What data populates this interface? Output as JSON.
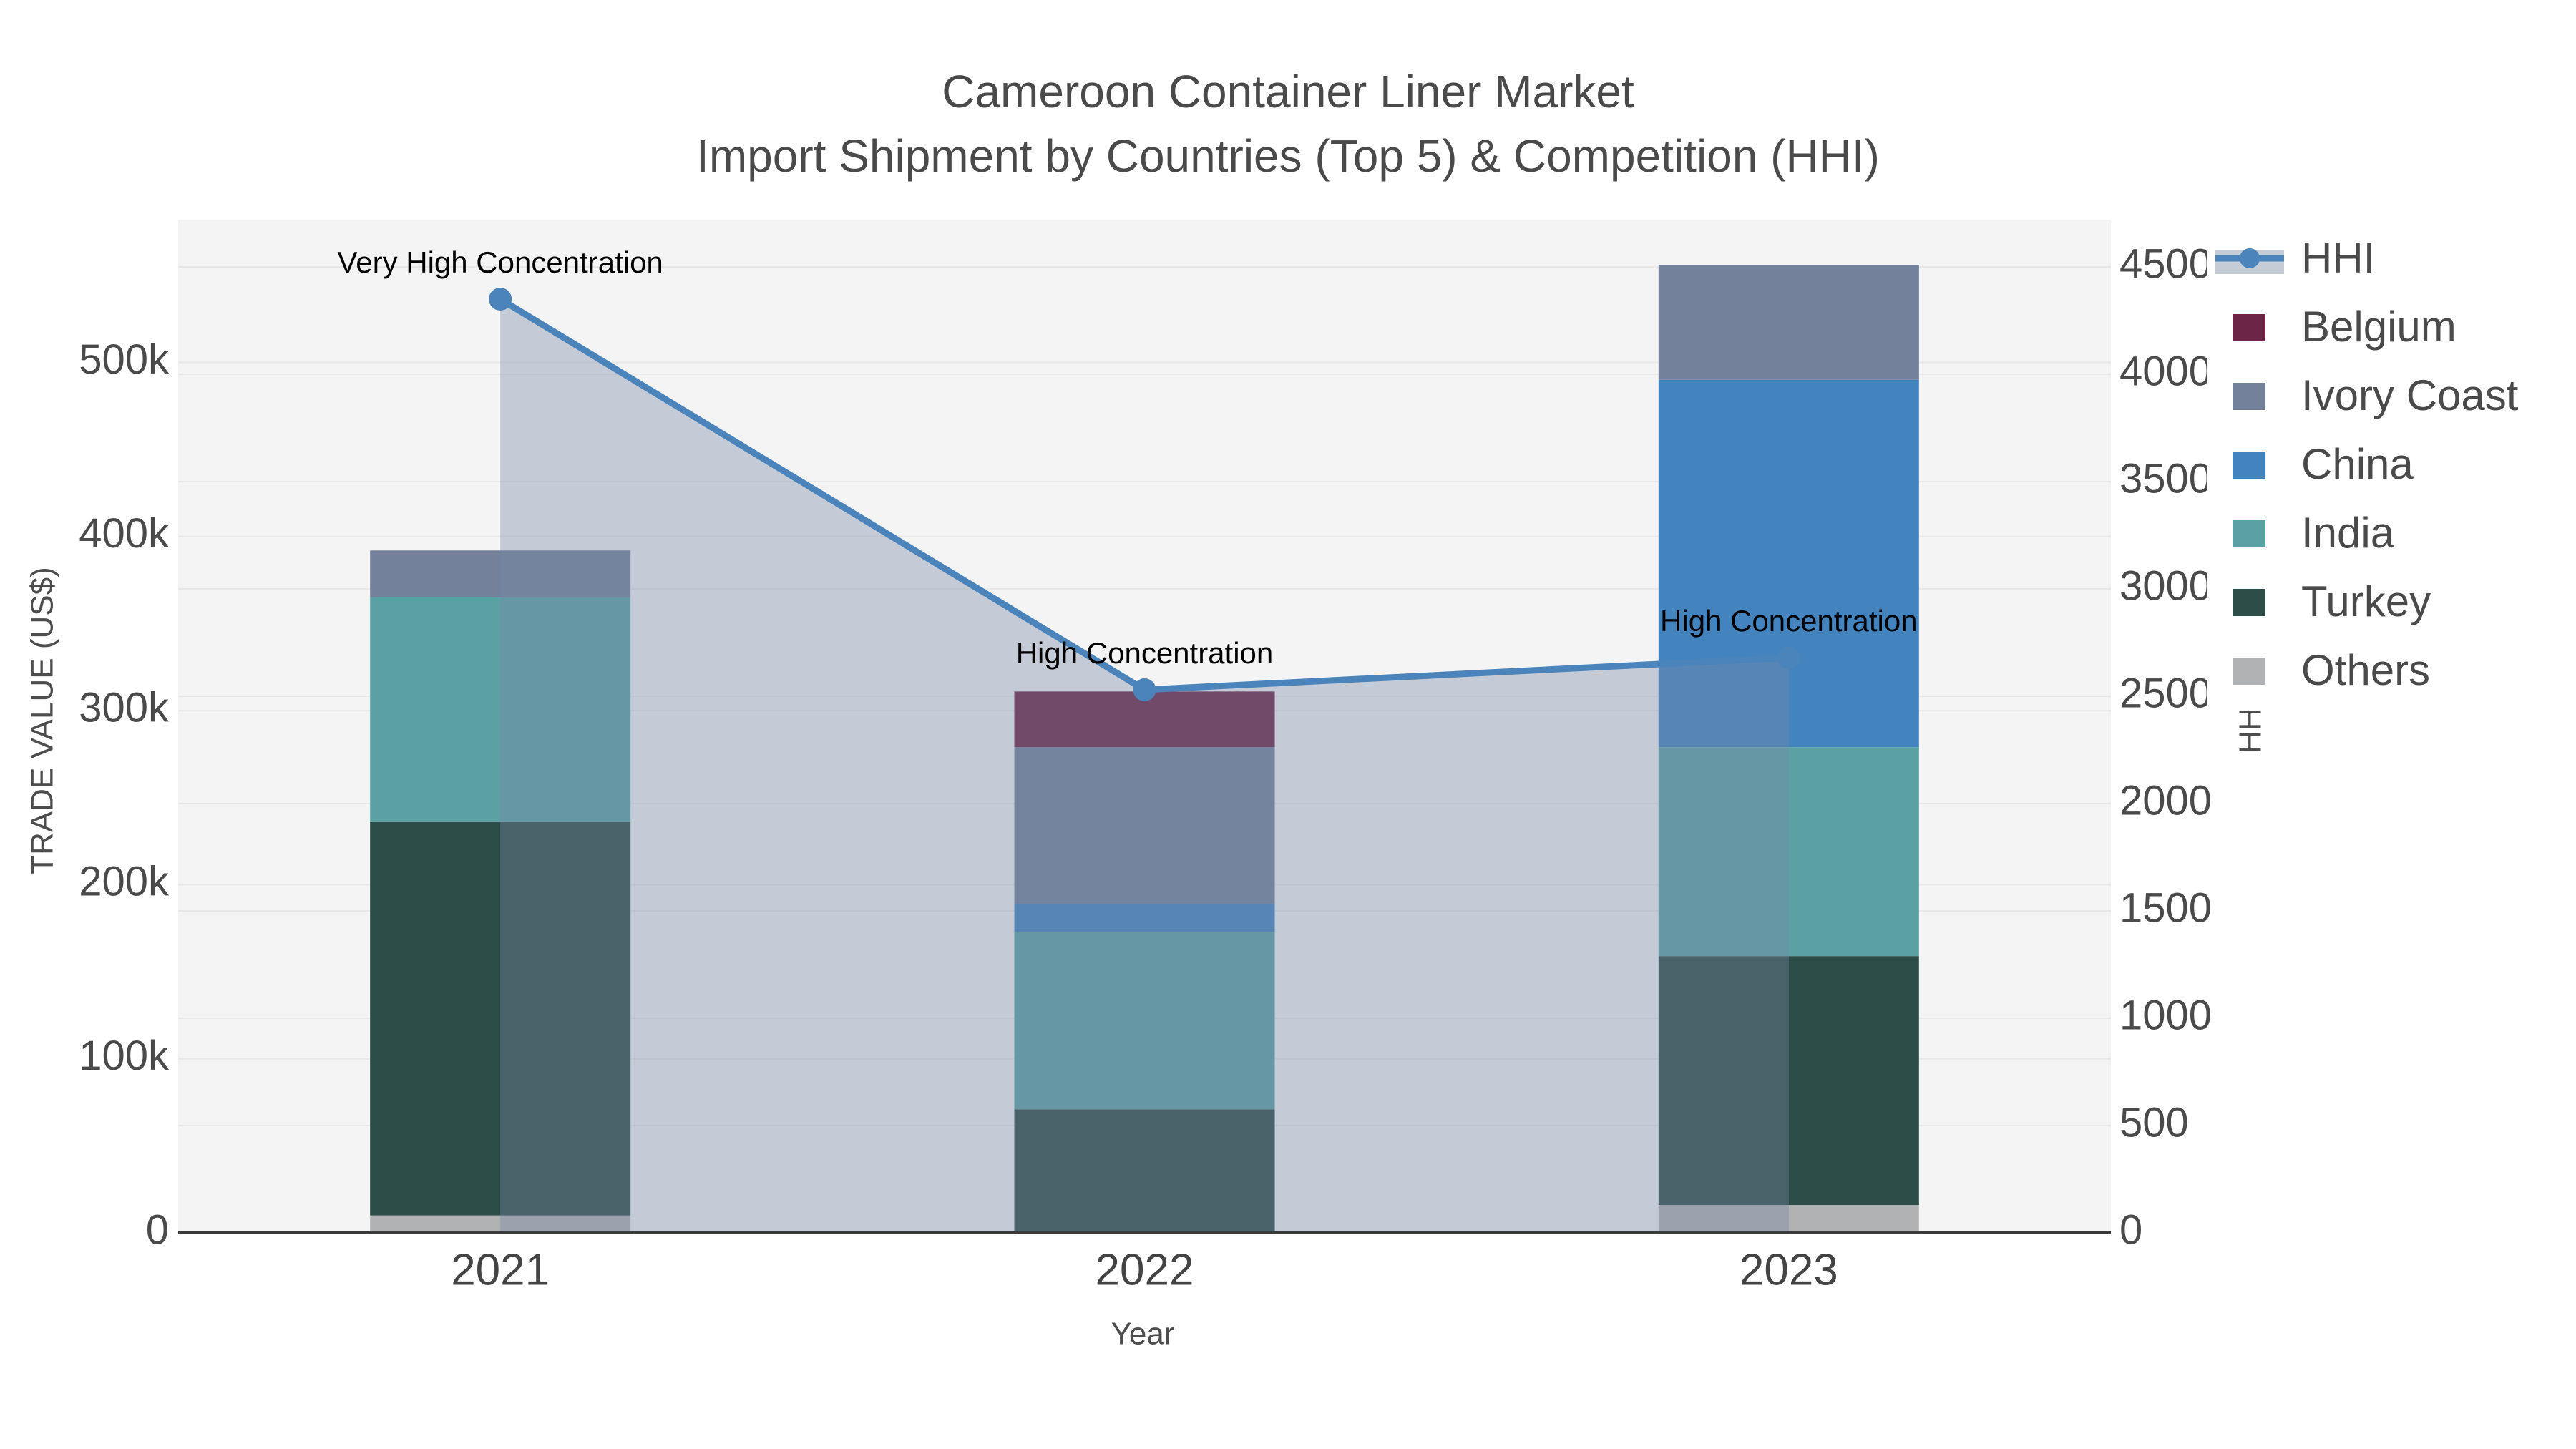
{
  "title": {
    "line1": "Cameroon Container Liner Market",
    "line2": "Import Shipment by Countries (Top 5) & Competition (HHI)"
  },
  "x_axis": {
    "title": "Year",
    "categories": [
      "2021",
      "2022",
      "2023"
    ]
  },
  "y_left_axis": {
    "title": "TRADE VALUE (US$)",
    "tick_labels": [
      "0",
      "100k",
      "200k",
      "300k",
      "400k",
      "500k"
    ],
    "tick_values": [
      0,
      100000,
      200000,
      300000,
      400000,
      500000
    ],
    "range": [
      0,
      582000
    ]
  },
  "y_right_axis": {
    "title": "HHI",
    "tick_labels": [
      "0",
      "500",
      "1000",
      "1500",
      "2000",
      "2500",
      "3000",
      "3500",
      "4000",
      "4500"
    ],
    "tick_values": [
      0,
      500,
      1000,
      1500,
      2000,
      2500,
      3000,
      3500,
      4000,
      4500
    ],
    "range": [
      0,
      4720
    ]
  },
  "legend": {
    "items": [
      {
        "label": "HHI",
        "type": "line",
        "color": "#4A84BA"
      },
      {
        "label": "Belgium",
        "type": "box",
        "color": "#6C2546"
      },
      {
        "label": "Ivory Coast",
        "type": "box",
        "color": "#73819A"
      },
      {
        "label": "China",
        "type": "box",
        "color": "#4384BF"
      },
      {
        "label": "India",
        "type": "box",
        "color": "#5BA1A4"
      },
      {
        "label": "Turkey",
        "type": "box",
        "color": "#2C4D48"
      },
      {
        "label": "Others",
        "type": "box",
        "color": "#B1B2B3"
      }
    ]
  },
  "annotations": [
    {
      "text": "Very High Concentration",
      "x_index": 0
    },
    {
      "text": "High Concentration",
      "x_index": 1
    },
    {
      "text": "High Concentration",
      "x_index": 2
    }
  ],
  "chart_data": {
    "type": "bar",
    "stacked": true,
    "title": "Cameroon Container Liner Market - Import Shipment by Countries (Top 5) & Competition (HHI)",
    "xlabel": "Year",
    "ylabel": "TRADE VALUE (US$)",
    "ylabel_right": "HHI",
    "categories": [
      "2021",
      "2022",
      "2023"
    ],
    "series": [
      {
        "name": "Others",
        "color": "#B1B2B3",
        "values": [
          10000,
          0,
          16000
        ]
      },
      {
        "name": "Turkey",
        "color": "#2C4D48",
        "values": [
          226000,
          71000,
          143000
        ]
      },
      {
        "name": "India",
        "color": "#5BA1A4",
        "values": [
          129000,
          102000,
          120000
        ]
      },
      {
        "name": "China",
        "color": "#4384BF",
        "values": [
          0,
          16000,
          211000
        ]
      },
      {
        "name": "Ivory Coast",
        "color": "#73819A",
        "values": [
          27000,
          90000,
          66000
        ]
      },
      {
        "name": "Belgium",
        "color": "#6C2546",
        "values": [
          0,
          32000,
          0
        ]
      }
    ],
    "bar_totals": [
      392000,
      311000,
      556000
    ],
    "line_series": {
      "name": "HHI",
      "axis": "right",
      "color": "#4A84BA",
      "fill_color": "rgba(120,138,166,0.38)",
      "values": [
        4350,
        2530,
        2680
      ]
    },
    "ylim_left": [
      0,
      582000
    ],
    "ylim_right": [
      0,
      4720
    ],
    "grid": true,
    "legend_position": "right"
  },
  "style": {
    "plot_bg": "#f4f4f4",
    "paper_bg": "#ffffff",
    "grid_color": "#e8e8e8",
    "axis_line_color": "#3a3a3a",
    "tick_color": "#4a4a4a",
    "annotation_color": "#000000",
    "legend_bg": "#ffffff"
  }
}
